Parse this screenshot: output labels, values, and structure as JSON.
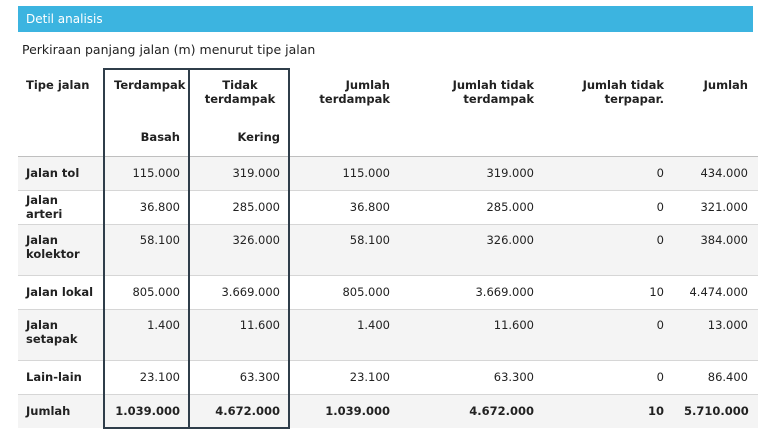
{
  "panel": {
    "title": "Detil analisis"
  },
  "subtitle": "Perkiraan panjang jalan (m) menurut tipe jalan",
  "table": {
    "headers": {
      "tipe": "Tipe jalan",
      "terdampak": "Terdampak",
      "tidak_terdampak": "Tidak terdampak",
      "jumlah_terdampak": "Jumlah terdampak",
      "jumlah_tidak_terdampak": "Jumlah tidak terdampak",
      "jumlah_tidak_terpapar": "Jumlah tidak terpapar.",
      "jumlah": "Jumlah",
      "basah": "Basah",
      "kering": "Kering"
    },
    "rows": [
      {
        "tipe": "Jalan tol",
        "basah": "115.000",
        "kering": "319.000",
        "jt": "115.000",
        "jtt": "319.000",
        "jtp": "0",
        "jumlah": "434.000"
      },
      {
        "tipe": "Jalan arteri",
        "basah": "36.800",
        "kering": "285.000",
        "jt": "36.800",
        "jtt": "285.000",
        "jtp": "0",
        "jumlah": "321.000"
      },
      {
        "tipe": "Jalan kolektor",
        "basah": "58.100",
        "kering": "326.000",
        "jt": "58.100",
        "jtt": "326.000",
        "jtp": "0",
        "jumlah": "384.000"
      },
      {
        "tipe": "Jalan lokal",
        "basah": "805.000",
        "kering": "3.669.000",
        "jt": "805.000",
        "jtt": "3.669.000",
        "jtp": "10",
        "jumlah": "4.474.000"
      },
      {
        "tipe": "Jalan setapak",
        "basah": "1.400",
        "kering": "11.600",
        "jt": "1.400",
        "jtt": "11.600",
        "jtp": "0",
        "jumlah": "13.000"
      },
      {
        "tipe": "Lain-lain",
        "basah": "23.100",
        "kering": "63.300",
        "jt": "23.100",
        "jtt": "63.300",
        "jtp": "0",
        "jumlah": "86.400"
      },
      {
        "tipe": "Jumlah",
        "basah": "1.039.000",
        "kering": "4.672.000",
        "jt": "1.039.000",
        "jtt": "4.672.000",
        "jtp": "10",
        "jumlah": "5.710.000"
      }
    ]
  }
}
